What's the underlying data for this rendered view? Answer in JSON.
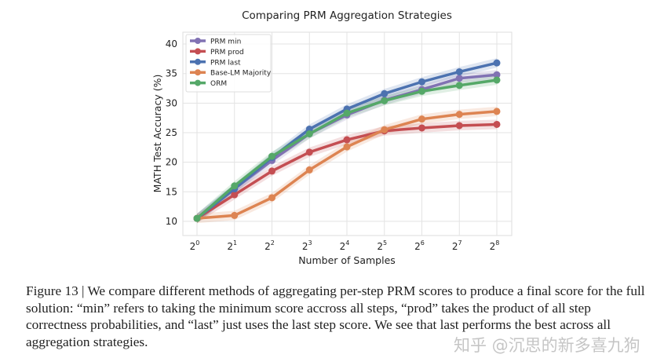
{
  "chart_data": {
    "type": "line",
    "title": "Comparing PRM Aggregation Strategies",
    "xlabel": "Number of Samples",
    "ylabel": "MATH Test Accuracy (%)",
    "x": [
      1,
      2,
      4,
      8,
      16,
      32,
      64,
      128,
      256
    ],
    "x_scale": "log2",
    "x_tick_labels": [
      {
        "base": "2",
        "exp": "0"
      },
      {
        "base": "2",
        "exp": "1"
      },
      {
        "base": "2",
        "exp": "2"
      },
      {
        "base": "2",
        "exp": "3"
      },
      {
        "base": "2",
        "exp": "4"
      },
      {
        "base": "2",
        "exp": "5"
      },
      {
        "base": "2",
        "exp": "6"
      },
      {
        "base": "2",
        "exp": "7"
      },
      {
        "base": "2",
        "exp": "8"
      }
    ],
    "y_ticks": [
      "10",
      "15",
      "20",
      "25",
      "30",
      "35",
      "40"
    ],
    "ylim": [
      7.6,
      42
    ],
    "grid": true,
    "legend_position": "top-left",
    "series": [
      {
        "name": "PRM min",
        "color": "#8172b3",
        "values": [
          10.5,
          15.5,
          20.3,
          24.8,
          28.0,
          30.5,
          32.3,
          34.2,
          34.8
        ]
      },
      {
        "name": "PRM prod",
        "color": "#c44e52",
        "values": [
          10.5,
          14.5,
          18.5,
          21.7,
          23.8,
          25.3,
          25.8,
          26.2,
          26.4
        ]
      },
      {
        "name": "PRM last",
        "color": "#4c72b0",
        "values": [
          10.5,
          15.5,
          20.8,
          25.6,
          29.0,
          31.6,
          33.6,
          35.3,
          36.8
        ]
      },
      {
        "name": "Base-LM Majority",
        "color": "#dd8452",
        "values": [
          10.5,
          11.0,
          14.0,
          18.7,
          22.6,
          25.5,
          27.3,
          28.1,
          28.6
        ]
      },
      {
        "name": "ORM",
        "color": "#55a868",
        "values": [
          10.5,
          16.0,
          21.0,
          24.8,
          28.3,
          30.4,
          32.0,
          33.0,
          33.9
        ]
      }
    ]
  },
  "caption": "Figure 13 | We compare different methods of aggregating per-step PRM scores to produce a final score for the full solution: “min” refers to taking the minimum score accross all steps, “prod” takes the product of all step correctness probabilities, and “last” just uses the last step score. We see that last performs the best across all aggregation strategies.",
  "watermark": "知乎 @沉思的新多喜九狗"
}
